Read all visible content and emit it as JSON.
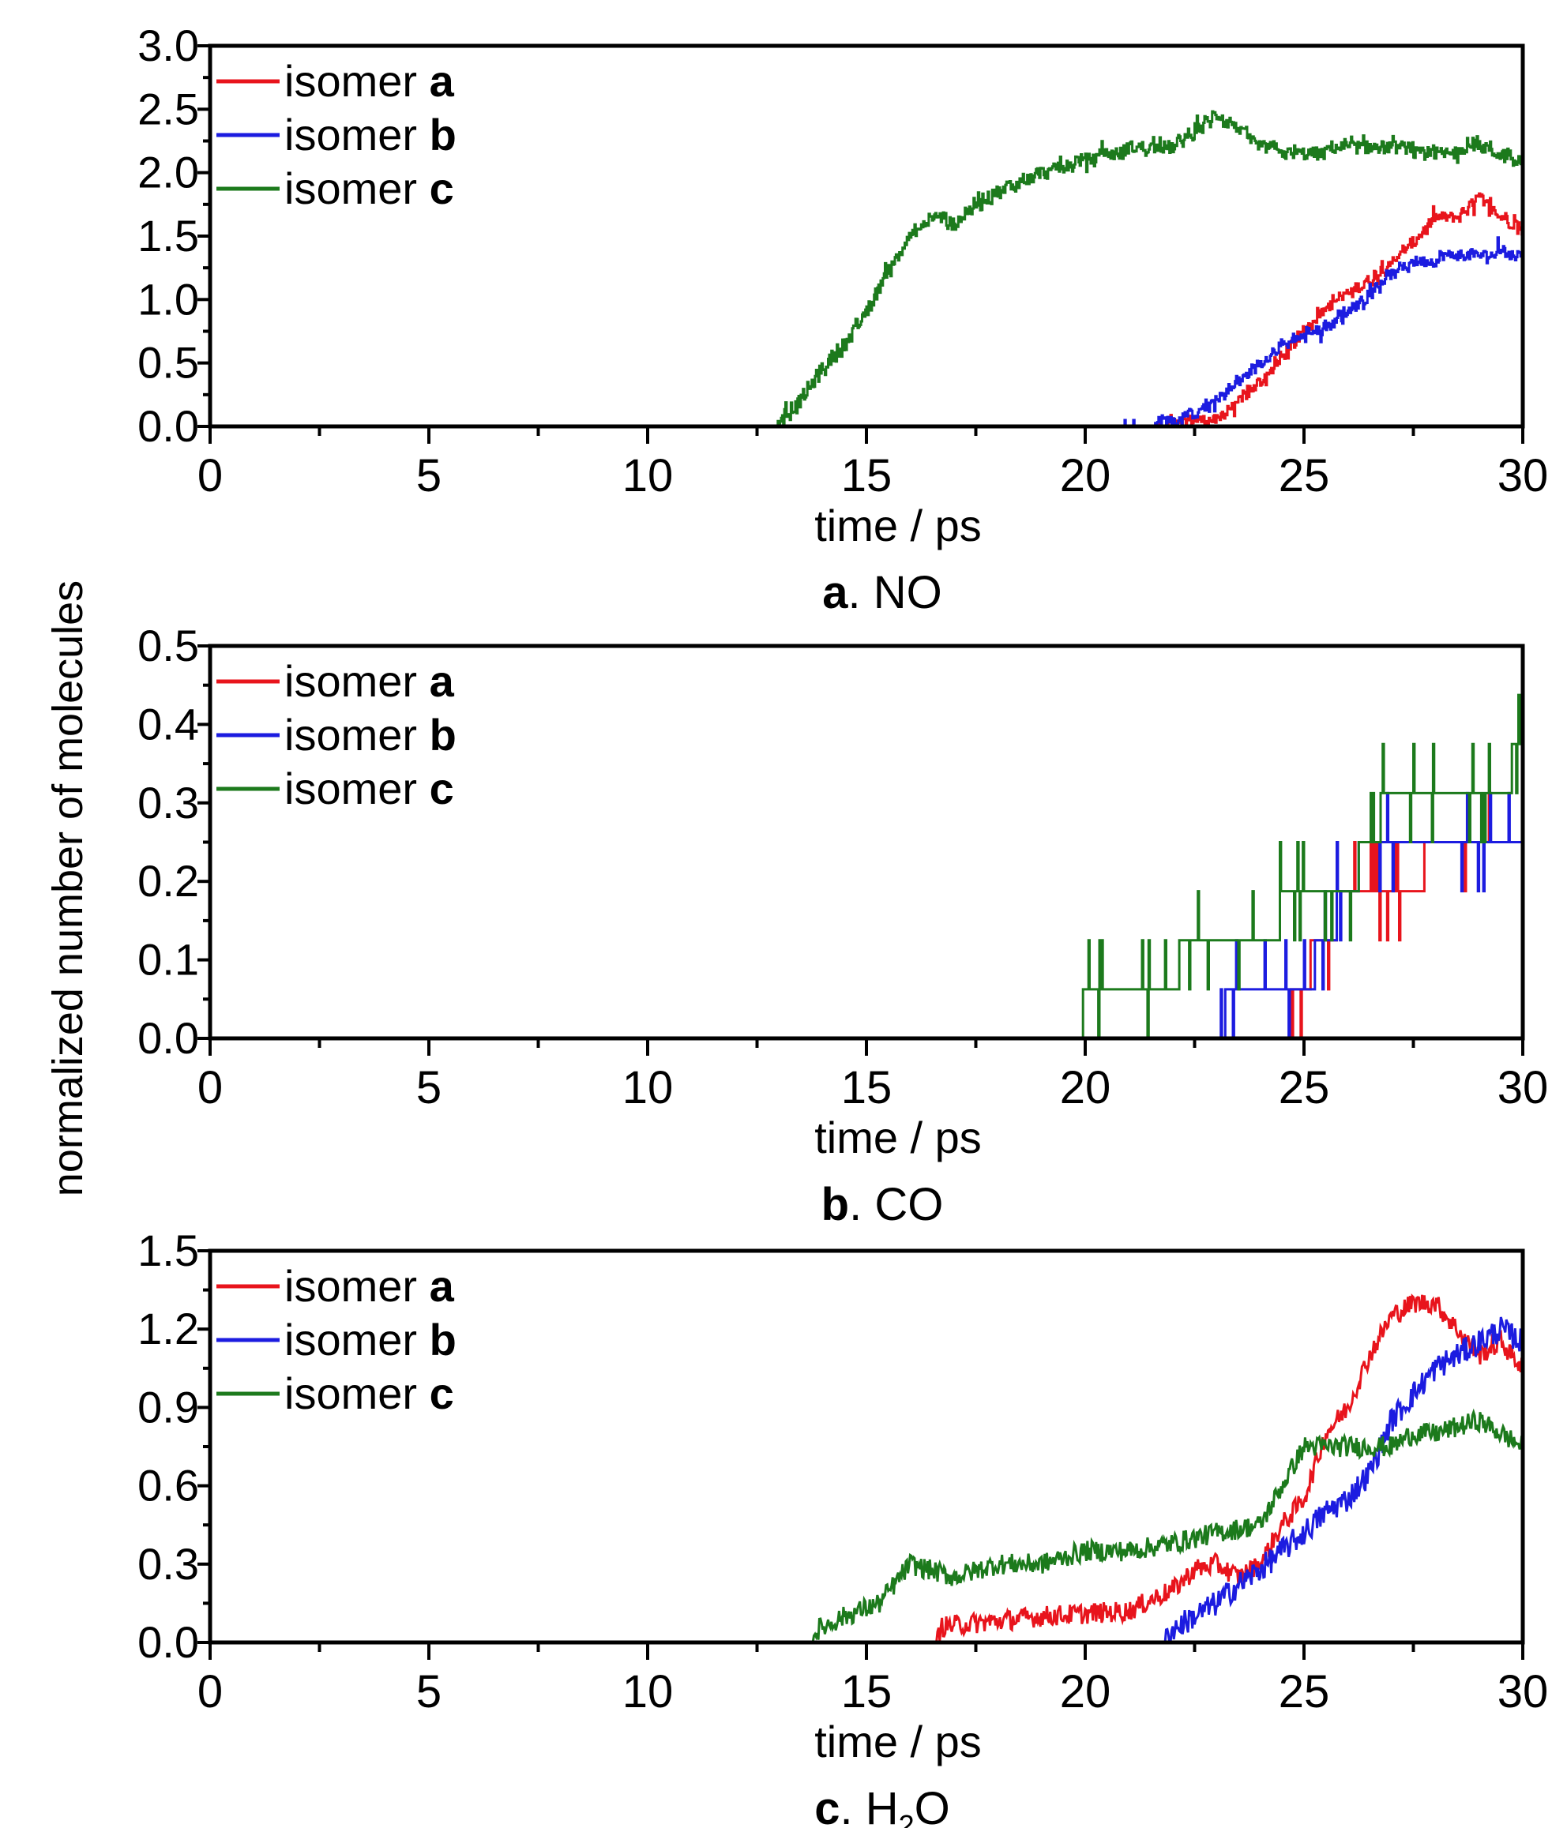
{
  "figure": {
    "shared_ylabel": "normalized number of molecules"
  },
  "colors": {
    "isomer_a": "#e8141c",
    "isomer_b": "#1c1ce0",
    "isomer_c": "#1c7a1c"
  },
  "chart_data": [
    {
      "type": "line",
      "caption": {
        "letter": "a",
        "rest": ". NO"
      },
      "xlabel": "time / ps",
      "ylabel": "",
      "xlim": [
        0,
        30
      ],
      "ylim": [
        0,
        3.0
      ],
      "xticks": [
        0,
        5,
        10,
        15,
        20,
        25,
        30
      ],
      "yticks": [
        0.0,
        0.5,
        1.0,
        1.5,
        2.0,
        2.5,
        3.0
      ],
      "ytick_labels": [
        "0.0",
        "0.5",
        "1.0",
        "1.5",
        "2.0",
        "2.5",
        "3.0"
      ],
      "legend": "top-left",
      "grid": false,
      "series": [
        {
          "name": "isomer",
          "name_bold": "a",
          "color": "#e8141c",
          "noise": 0.04,
          "step": 0.05,
          "x": [
            0,
            20.8,
            23.0,
            23.5,
            24.0,
            24.5,
            25.0,
            25.5,
            26.0,
            26.5,
            27.0,
            27.5,
            28.0,
            28.5,
            29.0,
            29.5,
            30.0
          ],
          "y": [
            0,
            0.0,
            0.05,
            0.2,
            0.35,
            0.55,
            0.75,
            0.95,
            1.05,
            1.15,
            1.3,
            1.45,
            1.65,
            1.65,
            1.8,
            1.65,
            1.55
          ]
        },
        {
          "name": "isomer",
          "name_bold": "b",
          "color": "#1c1ce0",
          "noise": 0.04,
          "step": 0.05,
          "x": [
            0,
            20.8,
            21.5,
            22.0,
            22.5,
            23.0,
            23.5,
            24.0,
            24.5,
            25.0,
            25.5,
            26.0,
            26.5,
            27.0,
            27.5,
            28.0,
            28.5,
            29.0,
            29.5,
            30.0
          ],
          "y": [
            0,
            0.0,
            0.02,
            0.05,
            0.1,
            0.2,
            0.35,
            0.5,
            0.65,
            0.72,
            0.78,
            0.9,
            1.05,
            1.2,
            1.3,
            1.32,
            1.35,
            1.35,
            1.38,
            1.35
          ]
        },
        {
          "name": "isomer",
          "name_bold": "c",
          "color": "#1c7a1c",
          "noise": 0.05,
          "step": 0.05,
          "x": [
            0,
            12.9,
            13.5,
            14.0,
            14.5,
            15.0,
            15.5,
            16.0,
            16.5,
            17.0,
            17.5,
            18.0,
            19.0,
            20.0,
            21.0,
            22.0,
            23.0,
            23.5,
            24.0,
            25.0,
            26.0,
            27.0,
            28.0,
            29.0,
            30.0
          ],
          "y": [
            0,
            0.0,
            0.2,
            0.45,
            0.65,
            0.9,
            1.25,
            1.5,
            1.65,
            1.6,
            1.75,
            1.85,
            2.0,
            2.1,
            2.18,
            2.2,
            2.45,
            2.35,
            2.2,
            2.15,
            2.2,
            2.2,
            2.15,
            2.2,
            2.1
          ]
        }
      ]
    },
    {
      "type": "line",
      "caption": {
        "letter": "b",
        "rest": ". CO"
      },
      "xlabel": "time / ps",
      "ylabel": "",
      "xlim": [
        0,
        30
      ],
      "ylim": [
        0,
        0.5
      ],
      "xticks": [
        0,
        5,
        10,
        15,
        20,
        25,
        30
      ],
      "yticks": [
        0.0,
        0.1,
        0.2,
        0.3,
        0.4,
        0.5
      ],
      "ytick_labels": [
        "0.0",
        "0.1",
        "0.2",
        "0.3",
        "0.4",
        "0.5"
      ],
      "legend": "top-left",
      "grid": false,
      "series": [
        {
          "name": "isomer",
          "name_bold": "a",
          "color": "#e8141c",
          "noise": 0.0,
          "step": 0.0625,
          "x": [
            0,
            24.7,
            24.8,
            25.5,
            26.0,
            26.5,
            27.0,
            27.5,
            28.0,
            28.5,
            29.0,
            29.5,
            30.0
          ],
          "y": [
            0,
            0.0,
            0.0625,
            0.125,
            0.1875,
            0.1875,
            0.1875,
            0.1875,
            0.25,
            0.25,
            0.25,
            0.25,
            0.25
          ]
        },
        {
          "name": "isomer",
          "name_bold": "b",
          "color": "#1c1ce0",
          "noise": 0.0,
          "step": 0.0625,
          "x": [
            0,
            23.1,
            23.3,
            24.0,
            25.0,
            25.5,
            26.0,
            26.5,
            27.0,
            27.5,
            28.0,
            28.5,
            29.0,
            29.5,
            30.0
          ],
          "y": [
            0,
            0.0,
            0.0625,
            0.0625,
            0.0625,
            0.125,
            0.1875,
            0.25,
            0.25,
            0.25,
            0.25,
            0.25,
            0.25,
            0.25,
            0.25
          ]
        },
        {
          "name": "isomer",
          "name_bold": "c",
          "color": "#1c7a1c",
          "noise": 0.0,
          "step": 0.0625,
          "x": [
            0,
            19.9,
            20.0,
            21.0,
            22.0,
            22.3,
            23.0,
            24.0,
            24.9,
            25.5,
            26.0,
            26.5,
            27.0,
            27.5,
            28.0,
            28.5,
            29.0,
            29.5,
            30.0
          ],
          "y": [
            0,
            0.0,
            0.0625,
            0.0625,
            0.0625,
            0.125,
            0.125,
            0.125,
            0.1875,
            0.1875,
            0.1875,
            0.25,
            0.3125,
            0.3125,
            0.3125,
            0.3125,
            0.3125,
            0.3125,
            0.375
          ]
        }
      ]
    },
    {
      "type": "line",
      "caption": {
        "letter": "c",
        "rest": ". H",
        "sub": "2",
        "tail": "O"
      },
      "xlabel": "time / ps",
      "ylabel": "",
      "xlim": [
        0,
        30
      ],
      "ylim": [
        0,
        1.5
      ],
      "xticks": [
        0,
        5,
        10,
        15,
        20,
        25,
        30
      ],
      "yticks": [
        0.0,
        0.3,
        0.6,
        0.9,
        1.2,
        1.5
      ],
      "ytick_labels": [
        "0.0",
        "0.3",
        "0.6",
        "0.9",
        "1.2",
        "1.5"
      ],
      "legend": "top-left",
      "grid": false,
      "series": [
        {
          "name": "isomer",
          "name_bold": "a",
          "color": "#e8141c",
          "noise": 0.04,
          "step": 0.0,
          "x": [
            0,
            16.6,
            16.7,
            19.0,
            21.0,
            21.7,
            22.0,
            22.5,
            23.0,
            23.5,
            24.0,
            24.5,
            25.0,
            25.5,
            26.0,
            26.5,
            27.0,
            27.5,
            28.0,
            28.5,
            29.0,
            29.5,
            30.0
          ],
          "y": [
            0,
            0.0,
            0.06,
            0.1,
            0.12,
            0.18,
            0.2,
            0.28,
            0.3,
            0.25,
            0.3,
            0.45,
            0.55,
            0.8,
            0.9,
            1.1,
            1.25,
            1.3,
            1.3,
            1.2,
            1.1,
            1.15,
            1.05
          ]
        },
        {
          "name": "isomer",
          "name_bold": "b",
          "color": "#1c1ce0",
          "noise": 0.05,
          "step": 0.0,
          "x": [
            0,
            21.8,
            22.0,
            22.5,
            23.0,
            23.5,
            24.0,
            24.5,
            25.0,
            25.5,
            26.0,
            26.5,
            27.0,
            27.5,
            28.0,
            28.5,
            29.0,
            29.5,
            30.0
          ],
          "y": [
            0,
            0.0,
            0.05,
            0.1,
            0.15,
            0.22,
            0.28,
            0.35,
            0.42,
            0.5,
            0.55,
            0.65,
            0.85,
            0.95,
            1.05,
            1.1,
            1.15,
            1.2,
            1.15
          ]
        },
        {
          "name": "isomer",
          "name_bold": "c",
          "color": "#1c7a1c",
          "noise": 0.04,
          "step": 0.0,
          "x": [
            0,
            13.7,
            13.9,
            14.5,
            15.3,
            16.0,
            17.0,
            18.0,
            19.0,
            20.0,
            21.0,
            22.0,
            23.0,
            24.0,
            24.5,
            25.0,
            26.0,
            27.0,
            27.5,
            28.0,
            29.0,
            30.0
          ],
          "y": [
            0,
            0.0,
            0.05,
            0.1,
            0.15,
            0.3,
            0.25,
            0.3,
            0.3,
            0.35,
            0.35,
            0.38,
            0.42,
            0.45,
            0.6,
            0.75,
            0.75,
            0.75,
            0.8,
            0.8,
            0.85,
            0.75
          ]
        }
      ]
    }
  ]
}
